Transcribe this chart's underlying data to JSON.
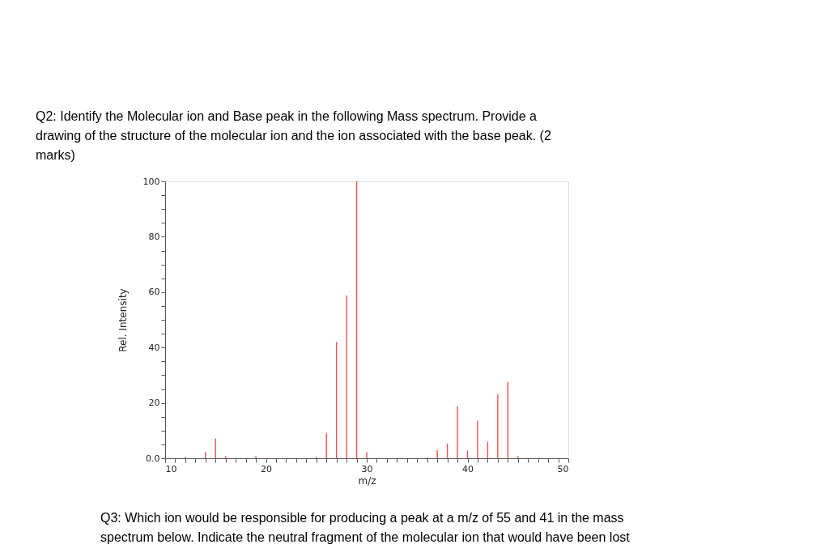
{
  "chart_data": {
    "type": "bar",
    "title": "Q2: Identify the Molecular ion and Base peak in the following Mass spectrum. Provide a drawing of the structure of the molecular ion and the ion associated with the base peak. (2 marks)",
    "xlabel": "m/z",
    "ylabel": "Rel. Intensity",
    "x": [
      12,
      13,
      14,
      15,
      16,
      19,
      20,
      25,
      26,
      27,
      28,
      29,
      30,
      36,
      37,
      38,
      39,
      40,
      41,
      42,
      43,
      44,
      45
    ],
    "values": [
      0.5,
      null,
      2.2,
      7.2,
      0.7,
      0.8,
      null,
      0.6,
      9.1,
      42,
      58.8,
      100,
      2.2,
      0.3,
      2.9,
      5.3,
      18.8,
      2.7,
      13.5,
      5.9,
      23.1,
      27.5,
      0.8
    ],
    "color": "#ff4d4d",
    "xlim": [
      10,
      50
    ],
    "xticks": [
      10,
      {
        "value": 11,
        "label": null
      },
      {
        "value": 12,
        "label": null
      },
      {
        "value": 13,
        "label": null
      },
      {
        "value": 14,
        "label": null
      },
      {
        "value": 15,
        "label": null
      },
      {
        "value": 16,
        "label": null
      },
      {
        "value": 17,
        "label": null
      },
      {
        "value": 18,
        "label": null
      },
      {
        "value": 19,
        "label": null
      },
      20,
      {
        "value": 21,
        "label": null
      },
      {
        "value": 22,
        "label": null
      },
      {
        "value": 23,
        "label": null
      },
      {
        "value": 24,
        "label": null
      },
      {
        "value": 25,
        "label": null
      },
      {
        "value": 26,
        "label": null
      },
      {
        "value": 27,
        "label": null
      },
      {
        "value": 28,
        "label": null
      },
      {
        "value": 29,
        "label": null
      },
      30,
      {
        "value": 31,
        "label": null
      },
      {
        "value": 32,
        "label": null
      },
      {
        "value": 33,
        "label": null
      },
      {
        "value": 34,
        "label": null
      },
      {
        "value": 35,
        "label": null
      },
      {
        "value": 36,
        "label": null
      },
      {
        "value": 37,
        "label": null
      },
      {
        "value": 38,
        "label": null
      },
      {
        "value": 39,
        "label": null
      },
      40,
      {
        "value": 41,
        "label": null
      },
      {
        "value": 42,
        "label": null
      },
      {
        "value": 43,
        "label": null
      },
      {
        "value": 44,
        "label": null
      },
      {
        "value": 45,
        "label": null
      },
      {
        "value": 46,
        "label": null
      },
      {
        "value": 47,
        "label": null
      },
      {
        "value": 48,
        "label": null
      },
      {
        "value": 49,
        "label": null
      },
      50
    ],
    "ylim": [
      0,
      100
    ],
    "yticks": [
      {
        "value": 0,
        "label": "0.0"
      },
      {
        "value": 5,
        "label": null
      },
      {
        "value": 10,
        "label": null
      },
      {
        "value": 15,
        "label": null
      },
      20,
      {
        "value": 25,
        "label": null
      },
      {
        "value": 30,
        "label": null
      },
      {
        "value": 35,
        "label": null
      },
      40,
      {
        "value": 45,
        "label": null
      },
      {
        "value": 50,
        "label": null
      },
      {
        "value": 55,
        "label": null
      },
      60,
      {
        "value": 65,
        "label": null
      },
      {
        "value": 70,
        "label": null
      },
      {
        "value": 75,
        "label": null
      },
      80,
      {
        "value": 85,
        "label": null
      },
      {
        "value": 90,
        "label": null
      },
      {
        "value": 95,
        "label": null
      },
      100
    ],
    "grid": false,
    "annotations": [
      "Q3: Which ion would be responsible for producing a peak at a m/z of 55 and 41 in the mass spectrum below. Indicate the neutral fragment of the molecular ion that would have been lost"
    ]
  }
}
